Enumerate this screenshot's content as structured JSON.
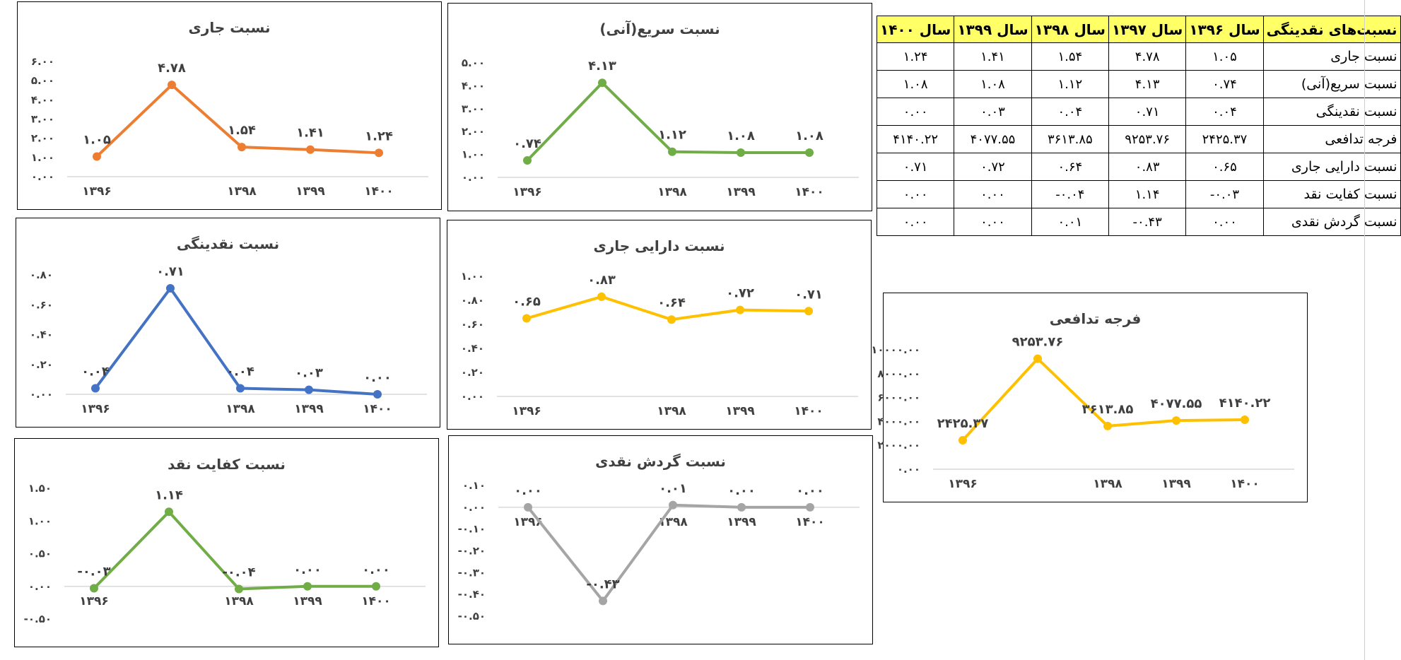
{
  "table": {
    "headers": [
      "نسبت‌های نقدینگی",
      "سال ۱۳۹۶",
      "سال ۱۳۹۷",
      "سال ۱۳۹۸",
      "سال ۱۳۹۹",
      "سال ۱۴۰۰"
    ],
    "rows": [
      {
        "label": "نسبت جاری",
        "values": [
          "۱.۰۵",
          "۴.۷۸",
          "۱.۵۴",
          "۱.۴۱",
          "۱.۲۴"
        ]
      },
      {
        "label": "نسبت سریع(آنی)",
        "values": [
          "۰.۷۴",
          "۴.۱۳",
          "۱.۱۲",
          "۱.۰۸",
          "۱.۰۸"
        ]
      },
      {
        "label": "نسبت نقدینگی",
        "values": [
          "۰.۰۴",
          "۰.۷۱",
          "۰.۰۴",
          "۰.۰۳",
          "۰.۰۰"
        ]
      },
      {
        "label": "فرجه تدافعی",
        "values": [
          "۲۴۲۵.۳۷",
          "۹۲۵۳.۷۶",
          "۳۶۱۳.۸۵",
          "۴۰۷۷.۵۵",
          "۴۱۴۰.۲۲"
        ]
      },
      {
        "label": "نسبت دارایی جاری",
        "values": [
          "۰.۶۵",
          "۰.۸۳",
          "۰.۶۴",
          "۰.۷۲",
          "۰.۷۱"
        ]
      },
      {
        "label": "نسبت کفایت نقد",
        "values": [
          "-۰.۰۳",
          "۱.۱۴",
          "-۰.۰۴",
          "۰.۰۰",
          "۰.۰۰"
        ]
      },
      {
        "label": "نسبت گردش نقدی",
        "values": [
          "۰.۰۰",
          "-۰.۴۳",
          "۰.۰۱",
          "۰.۰۰",
          "۰.۰۰"
        ]
      }
    ]
  },
  "chart_data": [
    {
      "type": "line",
      "title": "نسبت جاری",
      "color": "#ED7D31",
      "x_labels": [
        "۱۳۹۶",
        "",
        "۱۳۹۸",
        "۱۳۹۹",
        "۱۴۰۰"
      ],
      "values": [
        1.05,
        4.78,
        1.54,
        1.41,
        1.24
      ],
      "data_labels": [
        "۱.۰۵",
        "۴.۷۸",
        "۱.۵۴",
        "۱.۴۱",
        "۱.۲۴"
      ],
      "ylim": [
        0,
        6
      ],
      "yticks": [
        0,
        1,
        2,
        3,
        4,
        5,
        6
      ],
      "ytick_labels": [
        "۰.۰۰",
        "۱.۰۰",
        "۲.۰۰",
        "۳.۰۰",
        "۴.۰۰",
        "۵.۰۰",
        "۶.۰۰"
      ],
      "grid": false,
      "xlabel": "",
      "ylabel": ""
    },
    {
      "type": "line",
      "title": "نسبت سریع(آنی)",
      "color": "#70AD47",
      "x_labels": [
        "۱۳۹۶",
        "",
        "۱۳۹۸",
        "۱۳۹۹",
        "۱۴۰۰"
      ],
      "values": [
        0.74,
        4.13,
        1.12,
        1.08,
        1.08
      ],
      "data_labels": [
        "۰.۷۴",
        "۴.۱۳",
        "۱.۱۲",
        "۱.۰۸",
        "۱.۰۸"
      ],
      "ylim": [
        0,
        5
      ],
      "yticks": [
        0,
        1,
        2,
        3,
        4,
        5
      ],
      "ytick_labels": [
        "۰.۰۰",
        "۱.۰۰",
        "۲.۰۰",
        "۳.۰۰",
        "۴.۰۰",
        "۵.۰۰"
      ],
      "grid": false,
      "xlabel": "",
      "ylabel": ""
    },
    {
      "type": "line",
      "title": "نسبت نقدینگی",
      "color": "#4472C4",
      "x_labels": [
        "۱۳۹۶",
        "",
        "۱۳۹۸",
        "۱۳۹۹",
        "۱۴۰۰"
      ],
      "values": [
        0.04,
        0.71,
        0.04,
        0.03,
        0.0
      ],
      "data_labels": [
        "۰.۰۴",
        "۰.۷۱",
        "۰.۰۴",
        "۰.۰۳",
        "۰.۰۰"
      ],
      "ylim": [
        0,
        0.8
      ],
      "yticks": [
        0,
        0.2,
        0.4,
        0.6,
        0.8
      ],
      "ytick_labels": [
        "۰.۰۰",
        "۰.۲۰",
        "۰.۴۰",
        "۰.۶۰",
        "۰.۸۰"
      ],
      "grid": false,
      "xlabel": "",
      "ylabel": ""
    },
    {
      "type": "line",
      "title": "نسبت دارایی جاری",
      "color": "#FFC000",
      "x_labels": [
        "۱۳۹۶",
        "",
        "۱۳۹۸",
        "۱۳۹۹",
        "۱۴۰۰"
      ],
      "values": [
        0.65,
        0.83,
        0.64,
        0.72,
        0.71
      ],
      "data_labels": [
        "۰.۶۵",
        "۰.۸۳",
        "۰.۶۴",
        "۰.۷۲",
        "۰.۷۱"
      ],
      "ylim": [
        0,
        1
      ],
      "yticks": [
        0,
        0.2,
        0.4,
        0.6,
        0.8,
        1
      ],
      "ytick_labels": [
        "۰.۰۰",
        "۰.۲۰",
        "۰.۴۰",
        "۰.۶۰",
        "۰.۸۰",
        "۱.۰۰"
      ],
      "grid": false,
      "xlabel": "",
      "ylabel": ""
    },
    {
      "type": "line",
      "title": "نسبت کفایت نقد",
      "color": "#70AD47",
      "x_labels": [
        "۱۳۹۶",
        "",
        "۱۳۹۸",
        "۱۳۹۹",
        "۱۴۰۰"
      ],
      "values": [
        -0.03,
        1.14,
        -0.04,
        0.0,
        0.0
      ],
      "data_labels": [
        "-۰.۰۳",
        "۱.۱۴",
        "-۰.۰۴",
        "۰.۰۰",
        "۰.۰۰"
      ],
      "ylim": [
        -0.5,
        1.5
      ],
      "yticks": [
        -0.5,
        0,
        0.5,
        1,
        1.5
      ],
      "ytick_labels": [
        "-۰.۵۰",
        "۰.۰۰",
        "۰.۵۰",
        "۱.۰۰",
        "۱.۵۰"
      ],
      "grid": false,
      "xlabel": "",
      "ylabel": ""
    },
    {
      "type": "line",
      "title": "نسبت گردش نقدی",
      "color": "#A5A5A5",
      "x_labels": [
        "۱۳۹۶",
        "",
        "۱۳۹۸",
        "۱۳۹۹",
        "۱۴۰۰"
      ],
      "values": [
        0.0,
        -0.43,
        0.01,
        0.0,
        0.0
      ],
      "data_labels": [
        "۰.۰۰",
        "-۰.۴۳",
        "۰.۰۱",
        "۰.۰۰",
        "۰.۰۰"
      ],
      "ylim": [
        -0.5,
        0.1
      ],
      "yticks": [
        -0.5,
        -0.4,
        -0.3,
        -0.2,
        -0.1,
        0,
        0.1
      ],
      "ytick_labels": [
        "-۰.۵۰",
        "-۰.۴۰",
        "-۰.۳۰",
        "-۰.۲۰",
        "-۰.۱۰",
        "۰.۰۰",
        "۰.۱۰"
      ],
      "grid": false,
      "xlabel": "",
      "ylabel": ""
    },
    {
      "type": "line",
      "title": "فرجه تدافعی",
      "color": "#FFC000",
      "x_labels": [
        "۱۳۹۶",
        "",
        "۱۳۹۸",
        "۱۳۹۹",
        "۱۴۰۰"
      ],
      "values": [
        2425.37,
        9253.76,
        3613.85,
        4077.55,
        4140.22
      ],
      "data_labels": [
        "۲۴۲۵.۳۷",
        "۹۲۵۳.۷۶",
        "۳۶۱۳.۸۵",
        "۴۰۷۷.۵۵",
        "۴۱۴۰.۲۲"
      ],
      "ylim": [
        0,
        10000
      ],
      "yticks": [
        0,
        2000,
        4000,
        6000,
        8000,
        10000
      ],
      "ytick_labels": [
        "۰.۰۰",
        "۲۰۰۰.۰۰",
        "۴۰۰۰.۰۰",
        "۶۰۰۰.۰۰",
        "۸۰۰۰.۰۰",
        "۱۰۰۰۰.۰۰"
      ],
      "grid": false,
      "xlabel": "",
      "ylabel": ""
    }
  ]
}
